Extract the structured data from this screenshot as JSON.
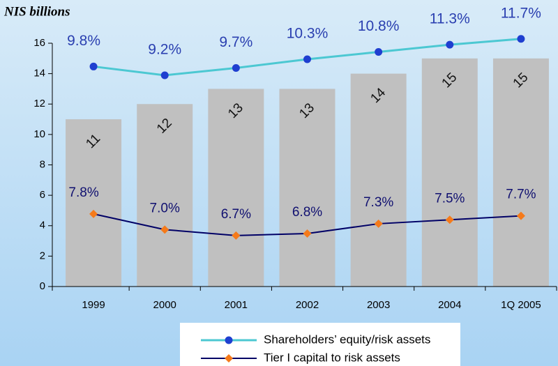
{
  "chart_data": {
    "type": "bar-line",
    "title": "NIS billions",
    "categories": [
      "1999",
      "2000",
      "2001",
      "2002",
      "2003",
      "2004",
      "1Q 2005"
    ],
    "values": [
      11,
      12,
      13,
      13,
      14,
      15,
      15
    ],
    "color": "#c0c0c0",
    "ylim": [
      0,
      16
    ],
    "yticks": [
      0,
      2,
      4,
      6,
      8,
      10,
      12,
      14,
      16
    ],
    "series": [
      {
        "name": "Shareholders’ equity/risk assets",
        "color": "#4cc8d2",
        "marker_color": "#1f3fd0",
        "marker": "circle",
        "values": [
          9.8,
          9.2,
          9.7,
          10.3,
          10.8,
          11.3,
          11.7
        ],
        "value_labels": [
          "9.8%",
          "9.2%",
          "9.7%",
          "10.3%",
          "10.8%",
          "11.3%",
          "11.7%"
        ],
        "ylim": [
          -5.3,
          11.4
        ]
      },
      {
        "name": "Tier I capital to risk assets",
        "color": "#000066",
        "marker_color": "#f57a1a",
        "marker": "diamond",
        "values": [
          7.8,
          7.0,
          6.7,
          6.8,
          7.3,
          7.5,
          7.7
        ],
        "value_labels": [
          "7.8%",
          "7.0%",
          "6.7%",
          "6.8%",
          "7.3%",
          "7.5%",
          "7.7%"
        ],
        "ylim": [
          4.1,
          16.5
        ]
      }
    ]
  }
}
